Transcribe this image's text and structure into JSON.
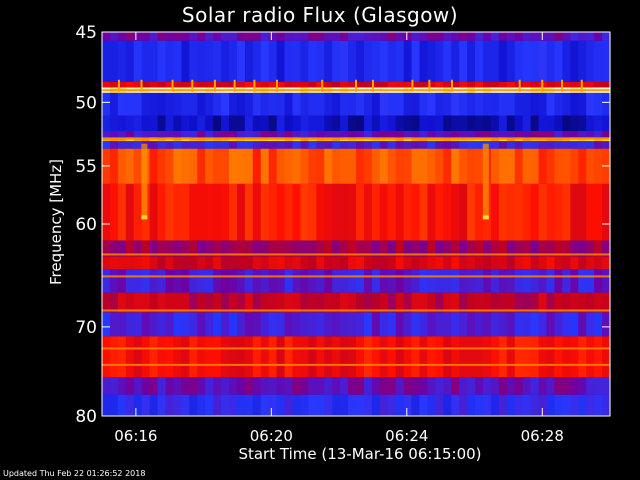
{
  "chart_data": {
    "type": "heatmap",
    "title": "Solar radio Flux (Glasgow)",
    "xlabel": "Start Time (13-Mar-16 06:15:00)",
    "ylabel": "Frequency [MHz]",
    "footer": "Updated Thu Feb 22 01:26:52 2018",
    "xlim": [
      "06:15:00",
      "06:30:00"
    ],
    "ylim": [
      45,
      80
    ],
    "y_scale": "log",
    "x_ticks": [
      "06:16",
      "06:20",
      "06:24",
      "06:28"
    ],
    "y_ticks": [
      45,
      50,
      55,
      60,
      70,
      80
    ],
    "colormap": [
      "#000038",
      "#1010d0",
      "#2838ff",
      "#7000a0",
      "#c00020",
      "#ff1000",
      "#ff7000",
      "#ffd000",
      "#ffffc0"
    ],
    "bands": [
      {
        "from": 45.0,
        "to": 45.6,
        "intensity": 0.35
      },
      {
        "from": 45.6,
        "to": 48.5,
        "intensity": 0.2
      },
      {
        "from": 48.5,
        "to": 48.9,
        "intensity": 0.55
      },
      {
        "from": 48.9,
        "to": 49.3,
        "intensity": 0.98
      },
      {
        "from": 49.3,
        "to": 51.0,
        "intensity": 0.2
      },
      {
        "from": 51.0,
        "to": 52.2,
        "intensity": 0.12
      },
      {
        "from": 52.2,
        "to": 52.7,
        "intensity": 0.35
      },
      {
        "from": 52.7,
        "to": 53.0,
        "intensity": 0.85
      },
      {
        "from": 53.0,
        "to": 53.6,
        "intensity": 0.3
      },
      {
        "from": 53.6,
        "to": 56.5,
        "intensity": 0.7
      },
      {
        "from": 56.5,
        "to": 61.5,
        "intensity": 0.62
      },
      {
        "from": 61.5,
        "to": 63.0,
        "intensity": 0.45
      },
      {
        "from": 63.0,
        "to": 64.2,
        "intensity": 0.55
      },
      {
        "from": 64.2,
        "to": 66.5,
        "intensity": 0.32
      },
      {
        "from": 66.5,
        "to": 68.5,
        "intensity": 0.5
      },
      {
        "from": 68.5,
        "to": 71.0,
        "intensity": 0.3
      },
      {
        "from": 71.0,
        "to": 75.5,
        "intensity": 0.6
      },
      {
        "from": 75.5,
        "to": 77.5,
        "intensity": 0.35
      },
      {
        "from": 77.5,
        "to": 80.0,
        "intensity": 0.25
      }
    ],
    "bright_lines_mhz": [
      49.1,
      52.8,
      62.8,
      64.9,
      68.3,
      72.3,
      74.1
    ],
    "bursts": [
      {
        "time": "06:16:15",
        "from": 53.2,
        "to": 59.5
      },
      {
        "time": "06:26:20",
        "from": 53.2,
        "to": 59.5
      }
    ],
    "spikes_at_mhz": 48.7,
    "spike_times": [
      "06:15:30",
      "06:16:10",
      "06:17:05",
      "06:17:40",
      "06:18:20",
      "06:18:55",
      "06:19:30",
      "06:20:10",
      "06:21:30",
      "06:22:30",
      "06:23:00",
      "06:24:10",
      "06:24:40",
      "06:25:20",
      "06:27:20",
      "06:28:00",
      "06:28:35",
      "06:29:10"
    ]
  }
}
